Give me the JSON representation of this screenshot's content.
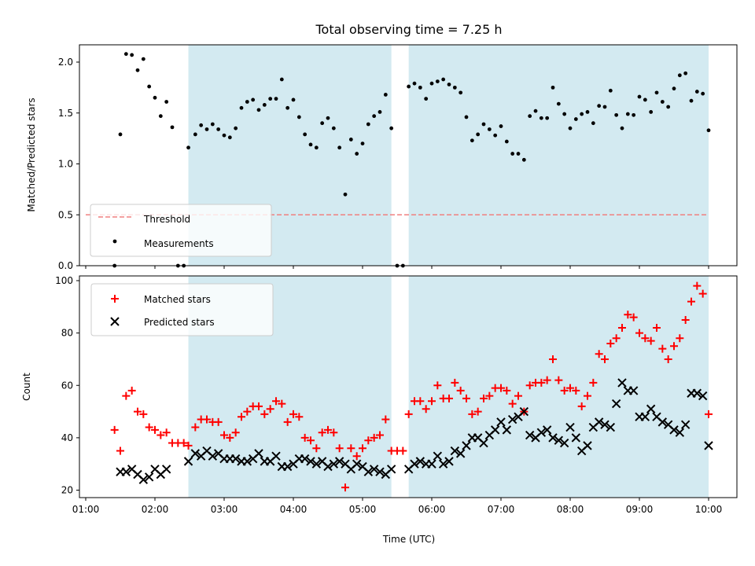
{
  "chart_data": [
    {
      "type": "scatter",
      "title": "Total observing time = 7.25 h",
      "xlabel": "",
      "ylabel": "Matched/Predicted stars",
      "xlim": [
        "01:00",
        "10:00"
      ],
      "ylim": [
        0,
        2.2
      ],
      "y_ticks": [
        "0.0",
        "0.5",
        "1.0",
        "1.5",
        "2.0"
      ],
      "grid": false,
      "legend_location": "lower-left",
      "shaded_intervals": [
        [
          "02:29",
          "05:25"
        ],
        [
          "05:40",
          "10:00"
        ]
      ],
      "shade_color": "#d3eaf1",
      "threshold": {
        "label": "Threshold",
        "value": 0.5,
        "color": "#f08080",
        "style": "dashed"
      },
      "series": [
        {
          "name": "Measurements",
          "color": "#000000",
          "marker": "dot",
          "x": [
            "01:25",
            "01:30",
            "01:35",
            "01:40",
            "01:45",
            "01:50",
            "01:55",
            "02:00",
            "02:05",
            "02:10",
            "02:15",
            "02:20",
            "02:25",
            "02:29",
            "02:35",
            "02:40",
            "02:45",
            "02:50",
            "02:55",
            "03:00",
            "03:05",
            "03:10",
            "03:15",
            "03:20",
            "03:25",
            "03:30",
            "03:35",
            "03:40",
            "03:45",
            "03:50",
            "03:55",
            "04:00",
            "04:05",
            "04:10",
            "04:15",
            "04:20",
            "04:25",
            "04:30",
            "04:35",
            "04:40",
            "04:45",
            "04:50",
            "04:55",
            "05:00",
            "05:05",
            "05:10",
            "05:15",
            "05:20",
            "05:25",
            "05:30",
            "05:35",
            "05:40",
            "05:45",
            "05:50",
            "05:55",
            "06:00",
            "06:05",
            "06:10",
            "06:15",
            "06:20",
            "06:25",
            "06:30",
            "06:35",
            "06:40",
            "06:45",
            "06:50",
            "06:55",
            "07:00",
            "07:05",
            "07:10",
            "07:15",
            "07:20",
            "07:25",
            "07:30",
            "07:35",
            "07:40",
            "07:45",
            "07:50",
            "07:55",
            "08:00",
            "08:05",
            "08:10",
            "08:15",
            "08:20",
            "08:25",
            "08:30",
            "08:35",
            "08:40",
            "08:45",
            "08:50",
            "08:55",
            "09:00",
            "09:05",
            "09:10",
            "09:15",
            "09:20",
            "09:25",
            "09:30",
            "09:35",
            "09:40",
            "09:45",
            "09:50",
            "09:55",
            "10:00"
          ],
          "y": [
            0.0,
            1.29,
            2.08,
            2.07,
            1.92,
            2.03,
            1.76,
            1.65,
            1.47,
            1.61,
            1.36,
            0.0,
            0.0,
            1.16,
            1.29,
            1.38,
            1.34,
            1.39,
            1.34,
            1.28,
            1.26,
            1.35,
            1.55,
            1.61,
            1.63,
            1.53,
            1.58,
            1.64,
            1.64,
            1.83,
            1.55,
            1.63,
            1.46,
            1.29,
            1.19,
            1.16,
            1.4,
            1.45,
            1.35,
            1.16,
            0.7,
            1.24,
            1.1,
            1.2,
            1.39,
            1.47,
            1.51,
            1.68,
            1.35,
            0.0,
            0.0,
            1.76,
            1.79,
            1.75,
            1.64,
            1.79,
            1.81,
            1.83,
            1.78,
            1.75,
            1.7,
            1.46,
            1.23,
            1.29,
            1.39,
            1.34,
            1.28,
            1.37,
            1.22,
            1.1,
            1.1,
            1.04,
            1.47,
            1.52,
            1.45,
            1.45,
            1.75,
            1.59,
            1.49,
            1.35,
            1.44,
            1.49,
            1.51,
            1.4,
            1.57,
            1.56,
            1.72,
            1.48,
            1.35,
            1.49,
            1.48,
            1.66,
            1.63,
            1.51,
            1.7,
            1.61,
            1.56,
            1.74,
            1.87,
            1.89,
            1.62,
            1.71,
            1.69,
            1.33
          ]
        }
      ]
    },
    {
      "type": "scatter",
      "title": "",
      "xlabel": "Time (UTC)",
      "ylabel": "Count",
      "xlim": [
        "01:00",
        "10:00"
      ],
      "ylim": [
        18,
        101
      ],
      "x_ticks": [
        "01:00",
        "02:00",
        "03:00",
        "04:00",
        "05:00",
        "06:00",
        "07:00",
        "08:00",
        "09:00",
        "10:00"
      ],
      "y_ticks": [
        "20",
        "40",
        "60",
        "80",
        "100"
      ],
      "grid": false,
      "legend_location": "upper-left",
      "shaded_intervals": [
        [
          "02:29",
          "05:25"
        ],
        [
          "05:40",
          "10:00"
        ]
      ],
      "shade_color": "#d3eaf1",
      "series": [
        {
          "name": "Matched stars",
          "color": "#ff0000",
          "marker": "plus",
          "x": [
            "01:25",
            "01:30",
            "01:35",
            "01:40",
            "01:45",
            "01:50",
            "01:55",
            "02:00",
            "02:05",
            "02:10",
            "02:15",
            "02:20",
            "02:25",
            "02:29",
            "02:35",
            "02:40",
            "02:45",
            "02:50",
            "02:55",
            "03:00",
            "03:05",
            "03:10",
            "03:15",
            "03:20",
            "03:25",
            "03:30",
            "03:35",
            "03:40",
            "03:45",
            "03:50",
            "03:55",
            "04:00",
            "04:05",
            "04:10",
            "04:15",
            "04:20",
            "04:25",
            "04:30",
            "04:35",
            "04:40",
            "04:45",
            "04:50",
            "04:55",
            "05:00",
            "05:05",
            "05:10",
            "05:15",
            "05:20",
            "05:25",
            "05:30",
            "05:35",
            "05:40",
            "05:45",
            "05:50",
            "05:55",
            "06:00",
            "06:05",
            "06:10",
            "06:15",
            "06:20",
            "06:25",
            "06:30",
            "06:35",
            "06:40",
            "06:45",
            "06:50",
            "06:55",
            "07:00",
            "07:05",
            "07:10",
            "07:15",
            "07:20",
            "07:25",
            "07:30",
            "07:35",
            "07:40",
            "07:45",
            "07:50",
            "07:55",
            "08:00",
            "08:05",
            "08:10",
            "08:15",
            "08:20",
            "08:25",
            "08:30",
            "08:35",
            "08:40",
            "08:45",
            "08:50",
            "08:55",
            "09:00",
            "09:05",
            "09:10",
            "09:15",
            "09:20",
            "09:25",
            "09:30",
            "09:35",
            "09:40",
            "09:45",
            "09:50",
            "09:55",
            "10:00"
          ],
          "y": [
            43,
            35,
            56,
            58,
            50,
            49,
            44,
            43,
            41,
            42,
            38,
            38,
            38,
            37,
            44,
            47,
            47,
            46,
            46,
            41,
            40,
            42,
            48,
            50,
            52,
            52,
            49,
            51,
            54,
            53,
            46,
            49,
            48,
            40,
            39,
            36,
            42,
            43,
            42,
            36,
            21,
            36,
            33,
            36,
            39,
            40,
            41,
            47,
            35,
            35,
            35,
            49,
            54,
            54,
            51,
            54,
            60,
            55,
            55,
            61,
            58,
            55,
            49,
            50,
            55,
            56,
            59,
            59,
            58,
            53,
            56,
            50,
            60,
            61,
            61,
            62,
            70,
            62,
            58,
            59,
            58,
            52,
            56,
            61,
            72,
            70,
            76,
            78,
            82,
            87,
            86,
            80,
            78,
            77,
            82,
            74,
            70,
            75,
            78,
            85,
            92,
            98,
            95,
            49
          ]
        },
        {
          "name": "Predicted stars",
          "color": "#000000",
          "marker": "x",
          "x": [
            "01:30",
            "01:35",
            "01:40",
            "01:45",
            "01:50",
            "01:55",
            "02:00",
            "02:05",
            "02:10",
            "02:29",
            "02:35",
            "02:40",
            "02:45",
            "02:50",
            "02:55",
            "03:00",
            "03:05",
            "03:10",
            "03:15",
            "03:20",
            "03:25",
            "03:30",
            "03:35",
            "03:40",
            "03:45",
            "03:50",
            "03:55",
            "04:00",
            "04:05",
            "04:10",
            "04:15",
            "04:20",
            "04:25",
            "04:30",
            "04:35",
            "04:40",
            "04:45",
            "04:50",
            "04:55",
            "05:00",
            "05:05",
            "05:10",
            "05:15",
            "05:20",
            "05:25",
            "05:40",
            "05:45",
            "05:50",
            "05:55",
            "06:00",
            "06:05",
            "06:10",
            "06:15",
            "06:20",
            "06:25",
            "06:30",
            "06:35",
            "06:40",
            "06:45",
            "06:50",
            "06:55",
            "07:00",
            "07:05",
            "07:10",
            "07:15",
            "07:20",
            "07:25",
            "07:30",
            "07:35",
            "07:40",
            "07:45",
            "07:50",
            "07:55",
            "08:00",
            "08:05",
            "08:10",
            "08:15",
            "08:20",
            "08:25",
            "08:30",
            "08:35",
            "08:40",
            "08:45",
            "08:50",
            "08:55",
            "09:00",
            "09:05",
            "09:10",
            "09:15",
            "09:20",
            "09:25",
            "09:30",
            "09:35",
            "09:40",
            "09:45",
            "09:50",
            "09:55",
            "10:00"
          ],
          "y": [
            27,
            27,
            28,
            26,
            24,
            25,
            28,
            26,
            28,
            31,
            34,
            33,
            35,
            33,
            34,
            32,
            32,
            32,
            31,
            31,
            32,
            34,
            31,
            31,
            33,
            29,
            29,
            30,
            32,
            32,
            31,
            30,
            31,
            29,
            30,
            31,
            30,
            28,
            30,
            29,
            27,
            28,
            27,
            26,
            28,
            28,
            30,
            31,
            30,
            30,
            33,
            30,
            31,
            35,
            34,
            37,
            40,
            40,
            38,
            41,
            43,
            46,
            43,
            47,
            48,
            50,
            41,
            40,
            42,
            43,
            40,
            39,
            38,
            44,
            40,
            35,
            37,
            44,
            46,
            45,
            44,
            53,
            61,
            58,
            58,
            48,
            48,
            51,
            48,
            46,
            45,
            43,
            42,
            45,
            57,
            57,
            56,
            37
          ]
        }
      ]
    }
  ]
}
